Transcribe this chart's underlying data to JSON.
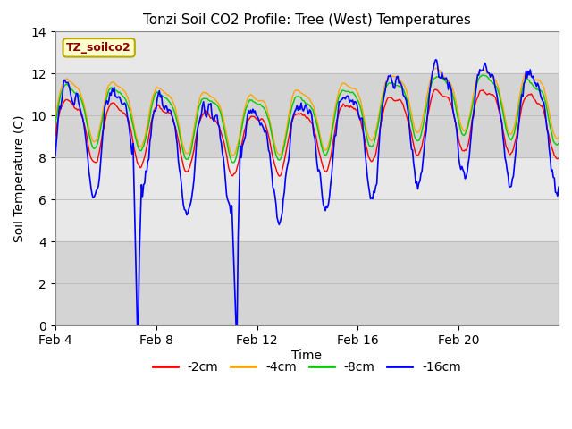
{
  "title": "Tonzi Soil CO2 Profile: Tree (West) Temperatures",
  "xlabel": "Time",
  "ylabel": "Soil Temperature (C)",
  "ylim": [
    0,
    14
  ],
  "yticks": [
    0,
    2,
    4,
    6,
    8,
    10,
    12,
    14
  ],
  "legend_label": "TZ_soilco2",
  "series_labels": [
    "-2cm",
    "-4cm",
    "-8cm",
    "-16cm"
  ],
  "series_colors": [
    "#ff0000",
    "#ffa500",
    "#00cc00",
    "#0000ff"
  ],
  "xticklabels": [
    "Feb 4",
    "Feb 8",
    "Feb 12",
    "Feb 16",
    "Feb 20"
  ],
  "xtick_positions": [
    0,
    96,
    192,
    288,
    384
  ],
  "n_points": 480,
  "background_color": "#ffffff",
  "plot_bg_color": "#e8e8e8",
  "band_color": "#d4d4d4"
}
